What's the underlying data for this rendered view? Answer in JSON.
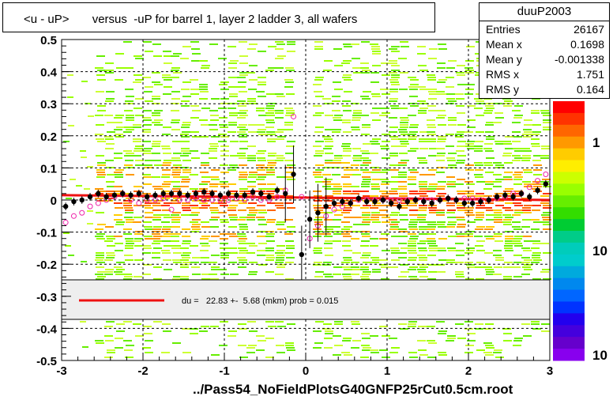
{
  "title": "<u - uP>       versus  -uP for barrel 1, layer 2 ladder 3, all wafers",
  "stats": {
    "name": "duuP2003",
    "rows": [
      {
        "label": "Entries",
        "value": "26167"
      },
      {
        "label": "Mean x",
        "value": "0.1698"
      },
      {
        "label": "Mean y",
        "value": "-0.001338"
      },
      {
        "label": "RMS x",
        "value": "1.751"
      },
      {
        "label": "RMS y",
        "value": "0.164"
      }
    ]
  },
  "fit_text": "du =   22.83 +-  5.68 (mkm) prob = 0.015",
  "filename": "../Pass54_NoFieldPlotsG40GNFP25rCut0.5cm.root",
  "colors": {
    "fit_line": "#ee1111",
    "profile_marker": "#000000",
    "open_marker": "#ee22aa",
    "legend_bg": "#eeeeee"
  },
  "chart_data": {
    "type": "scatter",
    "subtype": "2D histogram with profile overlay",
    "xlim": [
      -3,
      3
    ],
    "ylim": [
      -0.5,
      0.5
    ],
    "x_ticks": [
      "-3",
      "-2",
      "-1",
      "0",
      "1",
      "2",
      "3"
    ],
    "y_ticks": [
      "-0.5",
      "-0.4",
      "-0.3",
      "-0.2",
      "-0.1",
      "0",
      "0.1",
      "0.2",
      "0.3",
      "0.4",
      "0.5"
    ],
    "grid": true,
    "colorbar_labels": [
      "1",
      "10",
      "10"
    ],
    "profile_filled": {
      "x": [
        -2.95,
        -2.85,
        -2.75,
        -2.65,
        -2.55,
        -2.45,
        -2.35,
        -2.25,
        -2.15,
        -2.05,
        -1.95,
        -1.85,
        -1.75,
        -1.65,
        -1.55,
        -1.45,
        -1.35,
        -1.25,
        -1.15,
        -1.05,
        -0.95,
        -0.85,
        -0.75,
        -0.65,
        -0.55,
        -0.45,
        -0.35,
        -0.25,
        -0.15,
        -0.05,
        0.05,
        0.15,
        0.25,
        0.35,
        0.45,
        0.55,
        0.65,
        0.75,
        0.85,
        0.95,
        1.05,
        1.15,
        1.25,
        1.35,
        1.45,
        1.55,
        1.65,
        1.75,
        1.85,
        1.95,
        2.05,
        2.15,
        2.25,
        2.35,
        2.45,
        2.55,
        2.65,
        2.75,
        2.85,
        2.95
      ],
      "y": [
        -0.02,
        -0.005,
        0.0,
        0.01,
        0.02,
        0.01,
        0.015,
        0.02,
        0.015,
        0.02,
        0.01,
        0.015,
        0.02,
        0.02,
        0.02,
        0.015,
        0.02,
        0.025,
        0.02,
        0.015,
        0.02,
        0.015,
        0.015,
        0.025,
        0.02,
        0.01,
        0.03,
        0.02,
        0.08,
        -0.17,
        -0.06,
        -0.04,
        -0.02,
        -0.01,
        -0.005,
        -0.01,
        0.005,
        -0.005,
        -0.005,
        0.0,
        -0.01,
        -0.02,
        -0.005,
        0.0,
        -0.005,
        -0.01,
        0.0,
        0.005,
        0.0,
        -0.01,
        -0.01,
        -0.005,
        0.0,
        0.01,
        0.015,
        0.01,
        0.02,
        0.01,
        0.03,
        0.05
      ]
    },
    "profile_open": {
      "x": [
        -2.95,
        -2.85,
        -2.75,
        -2.65,
        -2.55,
        -2.45,
        -2.35,
        -2.25,
        -2.15,
        -2.05,
        -1.95,
        -1.85,
        -1.75,
        -1.65,
        -1.55,
        -1.45,
        -1.35,
        -1.25,
        -1.15,
        -1.05,
        -0.95,
        -0.85,
        -0.75,
        -0.65,
        -0.55,
        -0.45,
        -0.35,
        -0.25,
        -0.15,
        -0.05,
        0.05,
        0.15,
        0.25,
        0.35,
        0.45,
        0.55,
        0.65,
        0.75,
        0.85,
        0.95,
        1.05,
        1.15,
        1.25,
        1.35,
        1.45,
        1.55,
        1.65,
        1.75,
        1.85,
        1.95,
        2.05,
        2.15,
        2.25,
        2.35,
        2.45,
        2.55,
        2.65,
        2.75,
        2.85,
        2.95
      ],
      "y": [
        -0.07,
        -0.05,
        -0.04,
        -0.02,
        -0.01,
        0.0,
        0.01,
        0.02,
        0.0,
        -0.01,
        0.0,
        0.0,
        0.005,
        -0.03,
        0.0,
        0.0,
        0.005,
        0.0,
        0.0,
        0.0,
        0.0,
        0.005,
        0.0,
        0.01,
        0.0,
        0.0,
        0.01,
        0.03,
        0.26,
        0.01,
        -0.12,
        -0.08,
        -0.05,
        -0.03,
        -0.02,
        -0.01,
        0.0,
        0.0,
        0.0,
        0.0,
        0.0,
        0.0,
        0.0,
        0.0,
        0.0,
        0.0,
        0.0,
        0.005,
        0.0,
        0.005,
        0.005,
        0.0,
        0.0,
        0.005,
        0.01,
        0.02,
        0.02,
        0.04,
        0.06,
        0.08
      ]
    },
    "fit_line": {
      "x": [
        -3,
        3
      ],
      "y": [
        0.015,
        0.0
      ]
    }
  }
}
